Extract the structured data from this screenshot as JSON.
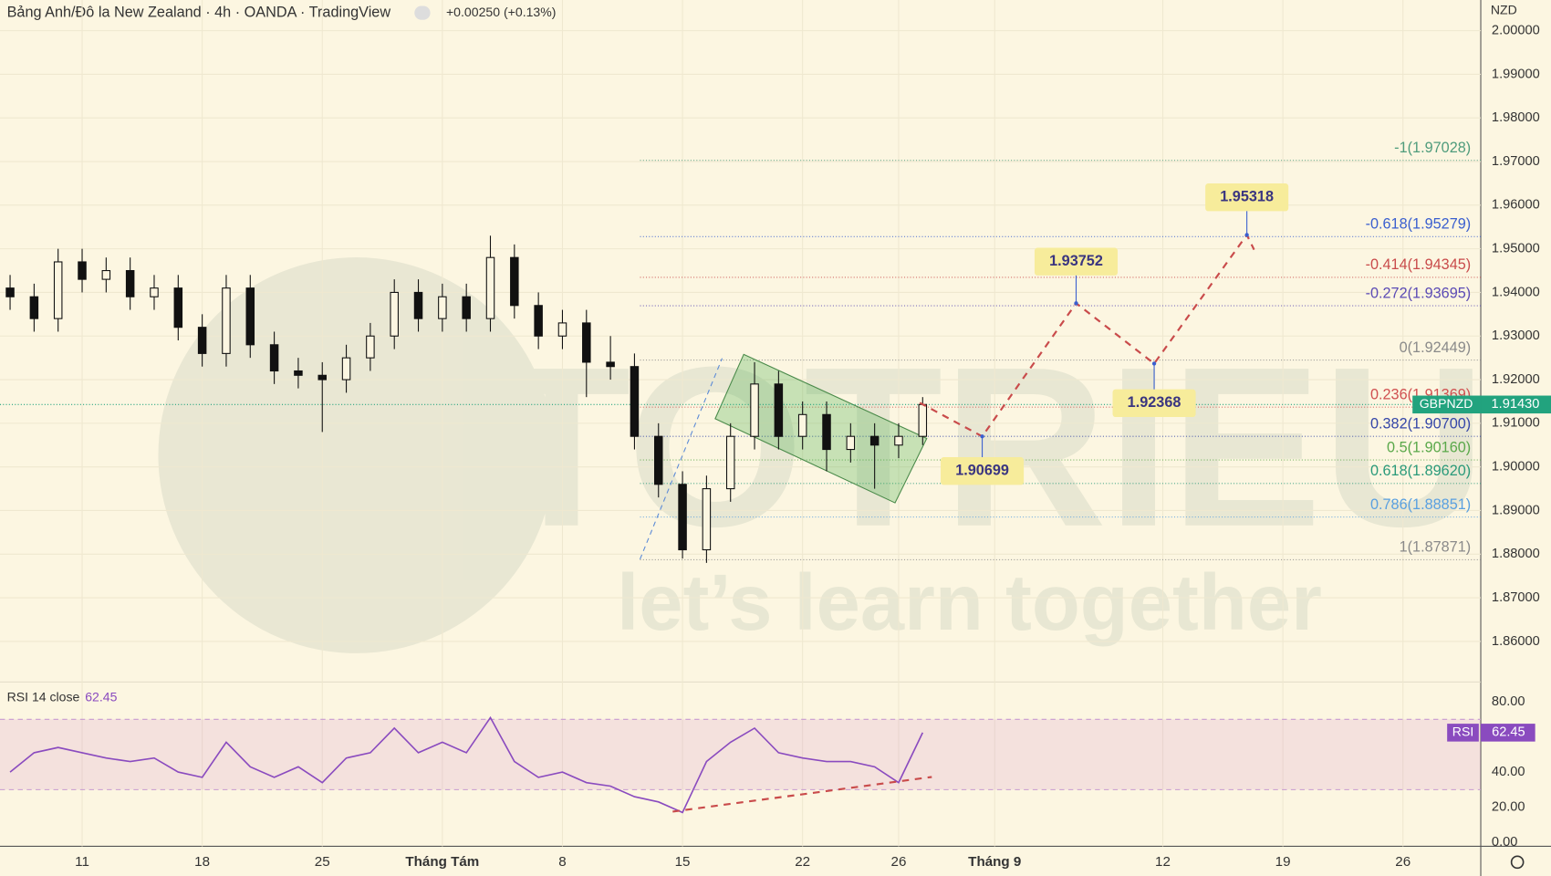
{
  "chart_data": {
    "type": "candlestick",
    "header": {
      "title": "Bảng Anh/Đô la New Zealand · 4h · OANDA · TradingView",
      "change": "+0.00250 (+0.13%)",
      "currency": "NZD"
    },
    "watermark": {
      "brand": "TOTRIEU",
      "tagline": "let’s learn together"
    },
    "xlim": [
      -3.42,
      58.24
    ],
    "xticks": [
      {
        "value": 0,
        "label": "11"
      },
      {
        "value": 5,
        "label": "18"
      },
      {
        "value": 10,
        "label": "25"
      },
      {
        "value": 15,
        "label": "Tháng Tám"
      },
      {
        "value": 20,
        "label": "8"
      },
      {
        "value": 25,
        "label": "15"
      },
      {
        "value": 30,
        "label": "22"
      },
      {
        "value": 34,
        "label": "26"
      },
      {
        "value": 38,
        "label": "Tháng 9"
      },
      {
        "value": 45,
        "label": "12"
      },
      {
        "value": 50,
        "label": "19"
      },
      {
        "value": 55,
        "label": "26"
      }
    ],
    "ylim": [
      1.85092,
      2.00703
    ],
    "yticks": [
      {
        "value": 2.0,
        "label": "2.00000"
      },
      {
        "value": 1.99,
        "label": "1.99000"
      },
      {
        "value": 1.98,
        "label": "1.98000"
      },
      {
        "value": 1.97,
        "label": "1.97000"
      },
      {
        "value": 1.96,
        "label": "1.96000"
      },
      {
        "value": 1.95,
        "label": "1.95000"
      },
      {
        "value": 1.94,
        "label": "1.94000"
      },
      {
        "value": 1.93,
        "label": "1.93000"
      },
      {
        "value": 1.92,
        "label": "1.92000"
      },
      {
        "value": 1.91,
        "label": "1.91000"
      },
      {
        "value": 1.9,
        "label": "1.90000"
      },
      {
        "value": 1.89,
        "label": "1.89000"
      },
      {
        "value": 1.88,
        "label": "1.88000"
      },
      {
        "value": 1.87,
        "label": "1.87000"
      },
      {
        "value": 1.86,
        "label": "1.86000"
      }
    ],
    "grid": true,
    "x": [
      -3,
      -2,
      -1,
      0,
      1,
      2,
      3,
      4,
      5,
      6,
      7,
      8,
      9,
      10,
      11,
      12,
      13,
      14,
      15,
      16,
      17,
      18,
      19,
      20,
      21,
      22,
      23,
      24,
      25,
      26,
      27,
      28,
      29,
      30,
      31,
      32,
      33,
      34,
      35
    ],
    "open": [
      1.941,
      1.939,
      1.934,
      1.947,
      1.943,
      1.945,
      1.939,
      1.941,
      1.932,
      1.926,
      1.941,
      1.928,
      1.922,
      1.921,
      1.92,
      1.925,
      1.93,
      1.94,
      1.934,
      1.939,
      1.934,
      1.948,
      1.937,
      1.93,
      1.933,
      1.924,
      1.923,
      1.907,
      1.896,
      1.881,
      1.895,
      1.907,
      1.919,
      1.907,
      1.912,
      1.904,
      1.907,
      1.905,
      1.907
    ],
    "high": [
      1.944,
      1.942,
      1.95,
      1.95,
      1.948,
      1.948,
      1.944,
      1.944,
      1.935,
      1.944,
      1.944,
      1.931,
      1.925,
      1.924,
      1.928,
      1.933,
      1.943,
      1.943,
      1.942,
      1.942,
      1.953,
      1.951,
      1.94,
      1.936,
      1.936,
      1.93,
      1.926,
      1.91,
      1.899,
      1.898,
      1.91,
      1.924,
      1.922,
      1.915,
      1.915,
      1.91,
      1.91,
      1.91,
      1.916
    ],
    "low": [
      1.936,
      1.931,
      1.931,
      1.94,
      1.94,
      1.936,
      1.936,
      1.929,
      1.923,
      1.923,
      1.925,
      1.919,
      1.918,
      1.908,
      1.917,
      1.922,
      1.927,
      1.931,
      1.931,
      1.931,
      1.931,
      1.934,
      1.927,
      1.927,
      1.916,
      1.92,
      1.904,
      1.893,
      1.879,
      1.878,
      1.892,
      1.904,
      1.904,
      1.904,
      1.899,
      1.901,
      1.895,
      1.902,
      1.905
    ],
    "close": [
      1.939,
      1.934,
      1.947,
      1.943,
      1.945,
      1.939,
      1.941,
      1.932,
      1.926,
      1.941,
      1.928,
      1.922,
      1.921,
      1.92,
      1.925,
      1.93,
      1.94,
      1.934,
      1.939,
      1.934,
      1.948,
      1.937,
      1.93,
      1.933,
      1.924,
      1.923,
      1.907,
      1.896,
      1.881,
      1.895,
      1.907,
      1.919,
      1.907,
      1.912,
      1.904,
      1.907,
      1.905,
      1.907,
      1.9143
    ],
    "current_price": {
      "symbol": "GBPNZD",
      "value": 1.9143,
      "label": "1.91430",
      "color": "#22a37e"
    },
    "fib_levels": [
      {
        "value": 1.97028,
        "label": "-1(1.97028)",
        "color": "#4f9c7c"
      },
      {
        "value": 1.95279,
        "label": "-0.618(1.95279)",
        "color": "#3a5fcf"
      },
      {
        "value": 1.94345,
        "label": "-0.414(1.94345)",
        "color": "#c94b4b"
      },
      {
        "value": 1.93695,
        "label": "-0.272(1.93695)",
        "color": "#5b4bb5"
      },
      {
        "value": 1.92449,
        "label": "0(1.92449)",
        "color": "#8a8a8a"
      },
      {
        "value": 1.91369,
        "label": "0.236(1.91369)",
        "color": "#d05050"
      },
      {
        "value": 1.907,
        "label": "0.382(1.90700)",
        "color": "#3446a8"
      },
      {
        "value": 1.9016,
        "label": "0.5(1.90160)",
        "color": "#5aa84a"
      },
      {
        "value": 1.8962,
        "label": "0.618(1.89620)",
        "color": "#2a9a7a"
      },
      {
        "value": 1.88851,
        "label": "0.786(1.88851)",
        "color": "#5aa0e0"
      },
      {
        "value": 1.87871,
        "label": "1(1.87871)",
        "color": "#8a8a8a"
      }
    ],
    "channel": {
      "x": [
        27.55,
        35.17,
        33.85,
        26.36
      ],
      "y": [
        1.9258,
        1.90651,
        1.89176,
        1.91105
      ]
    },
    "trendline": {
      "x": [
        23.23,
        26.65
      ],
      "y": [
        1.87883,
        1.92489
      ]
    },
    "projection": {
      "x": [
        34.88,
        37.48,
        41.39,
        44.64,
        48.5,
        48.8
      ],
      "y": [
        1.9147,
        1.90699,
        1.93752,
        1.92368,
        1.95318,
        1.9498
      ]
    },
    "targets": [
      {
        "x": 48.5,
        "value": 1.95318
      },
      {
        "x": 41.39,
        "value": 1.93752
      },
      {
        "x": 44.64,
        "value": 1.92368
      },
      {
        "x": 37.48,
        "value": 1.90699
      }
    ],
    "rsi": {
      "label": "RSI 14 close",
      "name": "RSI",
      "last": 62.45,
      "color": "#8a4bbf",
      "ylim": [
        -2.25,
        90.7
      ],
      "band": [
        30,
        70
      ],
      "yticks": [
        {
          "value": 80,
          "label": "80.00"
        },
        {
          "value": 40,
          "label": "40.00"
        },
        {
          "value": 20,
          "label": "20.00"
        },
        {
          "value": 0,
          "label": "0.00"
        }
      ],
      "values": [
        40,
        51,
        54,
        51,
        48,
        46,
        48,
        40,
        37,
        57,
        43,
        37,
        43,
        34,
        48,
        51,
        65,
        51,
        57,
        51,
        71,
        46,
        37,
        40,
        34,
        32,
        26,
        23,
        17,
        46,
        57,
        65,
        51,
        48,
        46,
        46,
        43,
        34,
        62.45
      ],
      "trendline": {
        "x": [
          24.59,
          35.38
        ],
        "y": [
          17.5,
          37.2
        ]
      }
    }
  }
}
